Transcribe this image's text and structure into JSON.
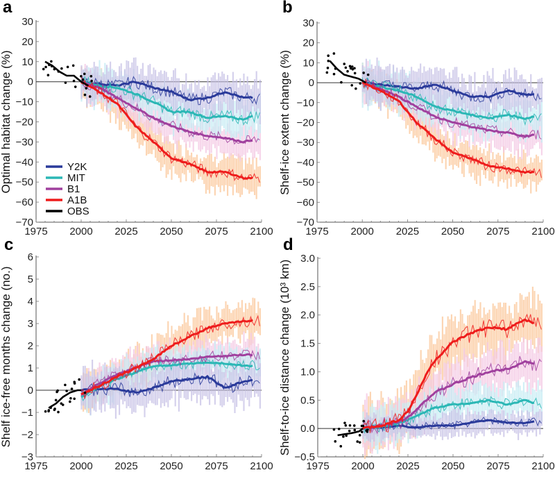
{
  "colors": {
    "Y2K": "#2a3a9a",
    "MIT": "#2bb7b5",
    "B1": "#a0409e",
    "A1B": "#ee1c1c",
    "OBS": "#000000",
    "Y2K_band": "#c8c2e6",
    "MIT_band": "#c4ecf4",
    "B1_band": "#f3c8e4",
    "A1B_band": "#fbc89a"
  },
  "legend": [
    "Y2K",
    "MIT",
    "B1",
    "A1B",
    "OBS"
  ],
  "chart_data": [
    {
      "panel": "a",
      "type": "line",
      "ylabel": "Optimal habitat change (%)",
      "xlim": [
        1975,
        2100
      ],
      "ylim": [
        -70,
        30
      ],
      "xticks": [
        1975,
        2000,
        2025,
        2050,
        2075,
        2100
      ],
      "yticks": [
        30,
        20,
        10,
        0,
        -10,
        -20,
        -30,
        -40,
        -50,
        -60,
        -70
      ],
      "legend_position": "bottom-left",
      "x": [
        2000,
        2010,
        2020,
        2030,
        2040,
        2050,
        2060,
        2070,
        2080,
        2090,
        2095
      ],
      "series": [
        {
          "name": "Y2K",
          "values": [
            0,
            -1,
            -2,
            0,
            -3,
            -5,
            -9,
            -8,
            -5,
            -8,
            -8
          ],
          "spread": 9
        },
        {
          "name": "MIT",
          "values": [
            0,
            -2,
            -3,
            -6,
            -10,
            -15,
            -15,
            -18,
            -17,
            -19,
            -17
          ],
          "spread": 9
        },
        {
          "name": "B1",
          "values": [
            0,
            -3,
            -8,
            -13,
            -18,
            -22,
            -25,
            -27,
            -28,
            -30,
            -29
          ],
          "spread": 8
        },
        {
          "name": "A1B",
          "values": [
            0,
            -5,
            -11,
            -22,
            -30,
            -38,
            -41,
            -45,
            -45,
            -48,
            -48
          ],
          "spread": 8
        }
      ],
      "obs": {
        "x": [
          1980,
          1984,
          1988,
          1992,
          1996,
          2000,
          2004
        ],
        "values": [
          10,
          8,
          5,
          3,
          3,
          0,
          -2
        ]
      }
    },
    {
      "panel": "b",
      "type": "line",
      "ylabel": "Shelf-ice extent change (%)",
      "xlim": [
        1975,
        2100
      ],
      "ylim": [
        -70,
        30
      ],
      "xticks": [
        1975,
        2000,
        2025,
        2050,
        2075,
        2100
      ],
      "yticks": [
        30,
        20,
        10,
        0,
        -10,
        -20,
        -30,
        -40,
        -50,
        -60,
        -70
      ],
      "x": [
        2000,
        2010,
        2020,
        2030,
        2040,
        2050,
        2060,
        2070,
        2080,
        2090,
        2095
      ],
      "series": [
        {
          "name": "Y2K",
          "values": [
            0,
            -1,
            -2,
            -3,
            -1,
            -4,
            -7,
            -7,
            -4,
            -6,
            -6
          ],
          "spread": 9
        },
        {
          "name": "MIT",
          "values": [
            0,
            -2,
            -4,
            -7,
            -12,
            -14,
            -16,
            -18,
            -16,
            -18,
            -17
          ],
          "spread": 9
        },
        {
          "name": "B1",
          "values": [
            0,
            -3,
            -7,
            -12,
            -17,
            -20,
            -22,
            -24,
            -25,
            -27,
            -26
          ],
          "spread": 8
        },
        {
          "name": "A1B",
          "values": [
            0,
            -4,
            -9,
            -20,
            -28,
            -35,
            -38,
            -42,
            -43,
            -45,
            -45
          ],
          "spread": 8
        }
      ],
      "obs": {
        "x": [
          1982,
          1986,
          1990,
          1994,
          1998,
          2002
        ],
        "values": [
          11,
          7,
          4,
          3,
          2,
          0
        ]
      }
    },
    {
      "panel": "c",
      "type": "line",
      "ylabel": "Shelf ice-free months change (no.)",
      "xlim": [
        1975,
        2100
      ],
      "ylim": [
        -3,
        6
      ],
      "xticks": [
        1975,
        2000,
        2025,
        2050,
        2075,
        2100
      ],
      "yticks": [
        6,
        5,
        4,
        3,
        2,
        1,
        0,
        -1,
        -2,
        -3
      ],
      "x": [
        2000,
        2010,
        2020,
        2030,
        2040,
        2050,
        2060,
        2070,
        2080,
        2090,
        2095
      ],
      "series": [
        {
          "name": "Y2K",
          "values": [
            0,
            0.05,
            0.05,
            -0.1,
            0.1,
            0.4,
            0.5,
            0.6,
            0.1,
            0.4,
            0.45
          ],
          "spread": 0.9
        },
        {
          "name": "MIT",
          "values": [
            -0.3,
            0.2,
            0.5,
            0.8,
            1.1,
            1.1,
            1.2,
            1.25,
            1.2,
            1.1,
            1.1
          ],
          "spread": 0.7
        },
        {
          "name": "B1",
          "values": [
            -0.2,
            0.3,
            0.7,
            1.0,
            1.3,
            1.35,
            1.4,
            1.5,
            1.55,
            1.6,
            1.6
          ],
          "spread": 0.7
        },
        {
          "name": "A1B",
          "values": [
            -0.2,
            0.2,
            0.6,
            1.0,
            1.4,
            2.0,
            2.4,
            2.8,
            3.0,
            3.1,
            3.15
          ],
          "spread": 0.8
        }
      ],
      "obs": {
        "x": [
          1982,
          1986,
          1990,
          1994,
          1998,
          2000
        ],
        "values": [
          -0.8,
          -0.6,
          -0.3,
          -0.1,
          0,
          0
        ]
      }
    },
    {
      "panel": "d",
      "type": "line",
      "ylabel": "Shelf-to-ice distance change (10³ km)",
      "xlim": [
        1975,
        2100
      ],
      "ylim": [
        -0.5,
        3.0
      ],
      "xticks": [
        1975,
        2000,
        2025,
        2050,
        2075,
        2100
      ],
      "yticks": [
        "3.0",
        "2.5",
        "2.0",
        "1.5",
        "1.0",
        "0.5",
        "0.0",
        "−0.5"
      ],
      "x": [
        2000,
        2010,
        2020,
        2025,
        2030,
        2035,
        2040,
        2050,
        2060,
        2070,
        2080,
        2090,
        2095
      ],
      "series": [
        {
          "name": "Y2K",
          "values": [
            0,
            0.02,
            0.05,
            0.03,
            0.02,
            0.04,
            0.05,
            0.05,
            0.1,
            0.15,
            0.1,
            0.1,
            0.12
          ],
          "spread": 0.2
        },
        {
          "name": "MIT",
          "values": [
            0,
            0.03,
            0.1,
            0.15,
            0.22,
            0.3,
            0.37,
            0.42,
            0.45,
            0.5,
            0.42,
            0.5,
            0.45
          ],
          "spread": 0.3
        },
        {
          "name": "B1",
          "values": [
            0,
            0.05,
            0.12,
            0.2,
            0.35,
            0.5,
            0.63,
            0.78,
            0.9,
            1.0,
            1.05,
            1.18,
            1.15
          ],
          "spread": 0.4
        },
        {
          "name": "A1B",
          "values": [
            0,
            0.05,
            0.15,
            0.3,
            0.6,
            0.95,
            1.2,
            1.52,
            1.68,
            1.78,
            1.75,
            1.92,
            1.85
          ],
          "spread": 0.45
        }
      ],
      "obs": {
        "x": [
          1986,
          1990,
          1994,
          1998,
          2000
        ],
        "values": [
          -0.12,
          -0.1,
          -0.08,
          -0.05,
          0
        ]
      }
    }
  ]
}
